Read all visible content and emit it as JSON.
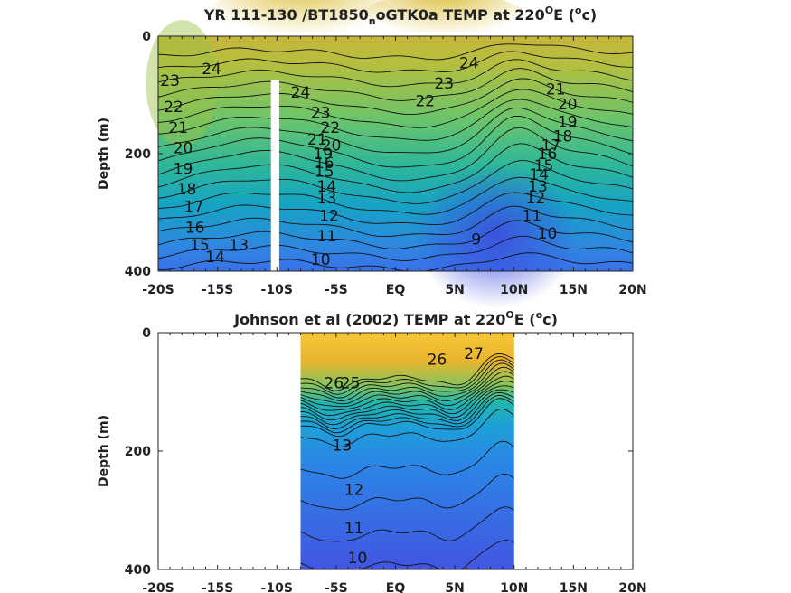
{
  "chart_data": [
    {
      "type": "contour",
      "title": "YR 111-130 /BT1850_noGTK0a TEMP at 220°E (°c)",
      "title_parts": {
        "lead": "YR 111-130 /BT1850",
        "sub": "n",
        "mid": "oGTK0a TEMP at 220",
        "deg1": "O",
        "e": "E (",
        "deg2": "o",
        "tail": "c)"
      },
      "ylabel": "Depth (m)",
      "xlim": [
        -20,
        20
      ],
      "ylim": [
        0,
        400
      ],
      "y_reversed": true,
      "x_ticks": [
        -20,
        -15,
        -10,
        -5,
        0,
        5,
        10,
        15,
        20
      ],
      "x_tick_labels": [
        "-20S",
        "-15S",
        "-10S",
        "-5S",
        "EQ",
        "5N",
        "10N",
        "15N",
        "20N"
      ],
      "y_ticks": [
        0,
        200,
        400
      ],
      "y_tick_labels": [
        "0",
        "200",
        "400"
      ],
      "data_extent_x": [
        -20,
        20
      ],
      "missing_band": {
        "x": [
          -10.5,
          -9.8
        ],
        "depth": [
          75,
          400
        ]
      },
      "contour_levels": [
        8,
        9,
        10,
        11,
        12,
        13,
        14,
        15,
        16,
        17,
        18,
        19,
        20,
        21,
        22,
        23,
        24,
        25
      ],
      "contour_labels": [
        {
          "value": "24",
          "x": -15.5,
          "depth": 55
        },
        {
          "value": "23",
          "x": -19.0,
          "depth": 75
        },
        {
          "value": "22",
          "x": -18.7,
          "depth": 120
        },
        {
          "value": "21",
          "x": -18.3,
          "depth": 155
        },
        {
          "value": "20",
          "x": -17.9,
          "depth": 190
        },
        {
          "value": "19",
          "x": -17.9,
          "depth": 225
        },
        {
          "value": "18",
          "x": -17.6,
          "depth": 260
        },
        {
          "value": "17",
          "x": -17.0,
          "depth": 290
        },
        {
          "value": "16",
          "x": -16.9,
          "depth": 325
        },
        {
          "value": "15",
          "x": -16.5,
          "depth": 355
        },
        {
          "value": "14",
          "x": -15.2,
          "depth": 375
        },
        {
          "value": "13",
          "x": -13.2,
          "depth": 355
        },
        {
          "value": "24",
          "x": -8.0,
          "depth": 95
        },
        {
          "value": "23",
          "x": -6.3,
          "depth": 130
        },
        {
          "value": "22",
          "x": -5.5,
          "depth": 155
        },
        {
          "value": "21",
          "x": -6.6,
          "depth": 175
        },
        {
          "value": "20",
          "x": -5.4,
          "depth": 185
        },
        {
          "value": "19",
          "x": -6.1,
          "depth": 200
        },
        {
          "value": "16",
          "x": -6.0,
          "depth": 215
        },
        {
          "value": "15",
          "x": -6.0,
          "depth": 230
        },
        {
          "value": "14",
          "x": -5.8,
          "depth": 255
        },
        {
          "value": "13",
          "x": -5.8,
          "depth": 275
        },
        {
          "value": "12",
          "x": -5.6,
          "depth": 305
        },
        {
          "value": "11",
          "x": -5.8,
          "depth": 340
        },
        {
          "value": "10",
          "x": -6.3,
          "depth": 380
        },
        {
          "value": "22",
          "x": 2.5,
          "depth": 110
        },
        {
          "value": "23",
          "x": 4.1,
          "depth": 80
        },
        {
          "value": "24",
          "x": 6.2,
          "depth": 45
        },
        {
          "value": "21",
          "x": 13.5,
          "depth": 90
        },
        {
          "value": "20",
          "x": 14.5,
          "depth": 115
        },
        {
          "value": "19",
          "x": 14.5,
          "depth": 145
        },
        {
          "value": "18",
          "x": 14.1,
          "depth": 170
        },
        {
          "value": "17",
          "x": 13.1,
          "depth": 185
        },
        {
          "value": "16",
          "x": 12.8,
          "depth": 200
        },
        {
          "value": "15",
          "x": 12.5,
          "depth": 220
        },
        {
          "value": "14",
          "x": 12.1,
          "depth": 235
        },
        {
          "value": "13",
          "x": 12.0,
          "depth": 255
        },
        {
          "value": "12",
          "x": 11.8,
          "depth": 275
        },
        {
          "value": "11",
          "x": 11.5,
          "depth": 305
        },
        {
          "value": "10",
          "x": 12.8,
          "depth": 335
        },
        {
          "value": "9",
          "x": 6.8,
          "depth": 345
        }
      ]
    },
    {
      "type": "contour",
      "title": "Johnson et al (2002) TEMP at 220°E (°c)",
      "title_parts": {
        "lead": "Johnson et al (2002) TEMP at 220",
        "deg1": "O",
        "e": "E (",
        "deg2": "o",
        "tail": "c)"
      },
      "ylabel": "Depth (m)",
      "xlim": [
        -20,
        20
      ],
      "ylim": [
        0,
        400
      ],
      "y_reversed": true,
      "x_ticks": [
        -20,
        -15,
        -10,
        -5,
        0,
        5,
        10,
        15,
        20
      ],
      "x_tick_labels": [
        "-20S",
        "-15S",
        "-10S",
        "-5S",
        "EQ",
        "5N",
        "10N",
        "15N",
        "20N"
      ],
      "y_ticks": [
        0,
        200,
        400
      ],
      "y_tick_labels": [
        "0",
        "200",
        "400"
      ],
      "data_extent_x": [
        -8,
        10
      ],
      "contour_levels": [
        10,
        11,
        12,
        13,
        14,
        15,
        16,
        17,
        18,
        19,
        20,
        21,
        22,
        23,
        24,
        25,
        26,
        27
      ],
      "contour_labels": [
        {
          "value": "27",
          "x": 6.6,
          "depth": 35
        },
        {
          "value": "26",
          "x": 3.5,
          "depth": 45
        },
        {
          "value": "26",
          "x": -5.2,
          "depth": 85
        },
        {
          "value": "25",
          "x": -3.8,
          "depth": 85
        },
        {
          "value": "13",
          "x": -4.5,
          "depth": 190
        },
        {
          "value": "12",
          "x": -3.5,
          "depth": 265
        },
        {
          "value": "11",
          "x": -3.5,
          "depth": 330
        },
        {
          "value": "10",
          "x": -3.2,
          "depth": 380
        }
      ]
    }
  ]
}
